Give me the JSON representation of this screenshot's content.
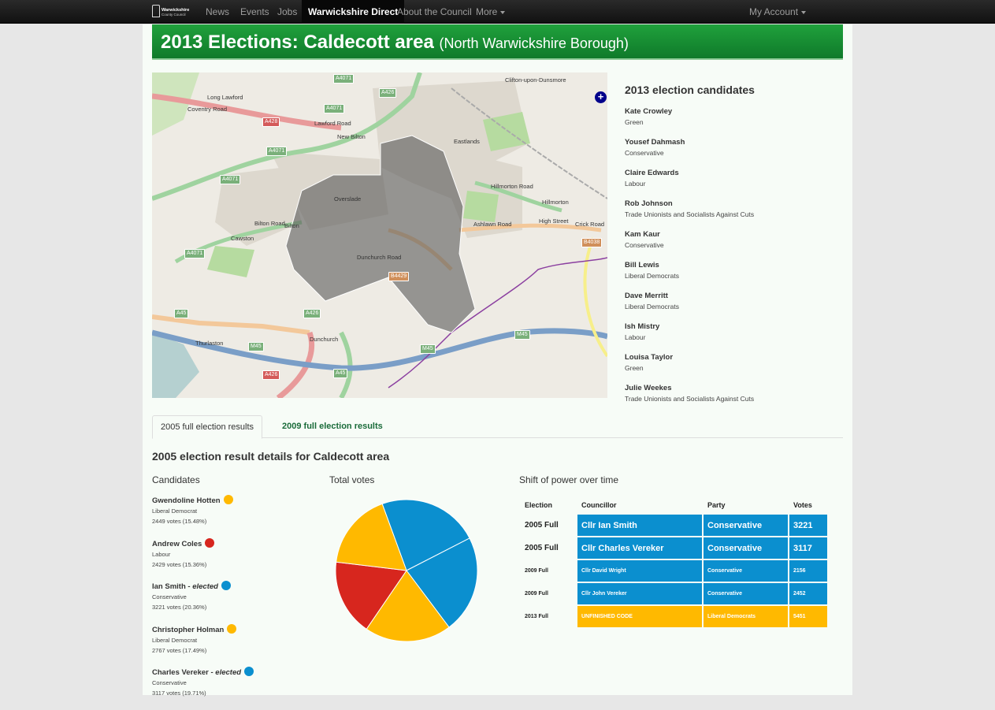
{
  "nav": {
    "logo_line1": "Warwickshire",
    "logo_line2": "County Council",
    "items": [
      "News",
      "Events",
      "Jobs",
      "Warwickshire Direct",
      "About the Council",
      "More"
    ],
    "account": "My Account"
  },
  "page": {
    "title": "2013 Elections: Caldecott area",
    "subtitle": "(North Warwickshire Borough)"
  },
  "map": {
    "labels": [
      "Long Lawford",
      "New Bilton",
      "Eastlands",
      "Overslade",
      "Hillmorton",
      "Cawston",
      "Bilton",
      "Thurlaston",
      "Dunchurch",
      "Clifton-upon-Dunsmore",
      "Coventry Road",
      "Lawford Road",
      "Bilton Road",
      "Ashlawn Road",
      "High Street",
      "Crick Road",
      "Hillmorton Road",
      "Dunchurch Road"
    ],
    "roads": [
      "A4071",
      "A426",
      "A428",
      "A45",
      "M45",
      "B4429",
      "B4038"
    ],
    "layer_button": "+"
  },
  "candidates_2013": {
    "heading": "2013 election candidates",
    "list": [
      {
        "name": "Kate Crowley",
        "party": "Green"
      },
      {
        "name": "Yousef Dahmash",
        "party": "Conservative"
      },
      {
        "name": "Claire Edwards",
        "party": "Labour"
      },
      {
        "name": "Rob Johnson",
        "party": "Trade Unionists and Socialists Against Cuts"
      },
      {
        "name": "Kam Kaur",
        "party": "Conservative"
      },
      {
        "name": "Bill Lewis",
        "party": "Liberal Democrats"
      },
      {
        "name": "Dave Merritt",
        "party": "Liberal Democrats"
      },
      {
        "name": "Ish Mistry",
        "party": "Labour"
      },
      {
        "name": "Louisa Taylor",
        "party": "Green"
      },
      {
        "name": "Julie Weekes",
        "party": "Trade Unionists and Socialists Against Cuts"
      }
    ]
  },
  "tabs": [
    "2005 full election results",
    "2009 full election results"
  ],
  "details": {
    "title": "2005 election result details for Caldecott area",
    "candidates_heading": "Candidates",
    "votes_heading": "Total votes",
    "shift_heading": "Shift of power over time"
  },
  "candidates_2005": [
    {
      "name": "Gwendoline Hotten",
      "elected": "",
      "party": "Liberal Democrat",
      "votes": "2449 votes (15.48%)",
      "color": "#ffb900"
    },
    {
      "name": "Andrew Coles",
      "elected": "",
      "party": "Labour",
      "votes": "2429 votes (15.36%)",
      "color": "#d7261e"
    },
    {
      "name": "Ian Smith",
      "elected": "elected",
      "party": "Conservative",
      "votes": "3221 votes (20.36%)",
      "color": "#0b8fcf"
    },
    {
      "name": "Christopher Holman",
      "elected": "",
      "party": "Liberal Democrat",
      "votes": "2767 votes (17.49%)",
      "color": "#ffb900"
    },
    {
      "name": "Charles Vereker",
      "elected": "elected",
      "party": "Conservative",
      "votes": "3117 votes (19.71%)",
      "color": "#0b8fcf"
    }
  ],
  "chart_data": {
    "type": "pie",
    "title": "",
    "categories": [
      "Gwendoline Hotten",
      "Andrew Coles",
      "Ian Smith",
      "Christopher Holman",
      "Charles Vereker"
    ],
    "values": [
      2449,
      2429,
      3221,
      2767,
      3117
    ],
    "colors": [
      "#ffb900",
      "#d7261e",
      "#0b8fcf",
      "#ffb900",
      "#0b8fcf"
    ]
  },
  "shift_table": {
    "headers": [
      "Election",
      "Councillor",
      "Party",
      "Votes"
    ],
    "rows": [
      {
        "election": "2005 Full",
        "councillor": "Cllr Ian Smith",
        "party": "Conservative",
        "votes": "3221",
        "color": "#0b8fcf",
        "size": "big"
      },
      {
        "election": "2005 Full",
        "councillor": "Cllr Charles Vereker",
        "party": "Conservative",
        "votes": "3117",
        "color": "#0b8fcf",
        "size": "big"
      },
      {
        "election": "2009 Full",
        "councillor": "Cllr David Wright",
        "party": "Conservative",
        "votes": "2156",
        "color": "#0b8fcf",
        "size": "small"
      },
      {
        "election": "2009 Full",
        "councillor": "Cllr John Vereker",
        "party": "Conservative",
        "votes": "2452",
        "color": "#0b8fcf",
        "size": "small"
      },
      {
        "election": "2013 Full",
        "councillor": "UNFINISHED CODE",
        "party": "Liberal Democrats",
        "votes": "5451",
        "color": "#ffb900",
        "size": "small"
      }
    ]
  }
}
